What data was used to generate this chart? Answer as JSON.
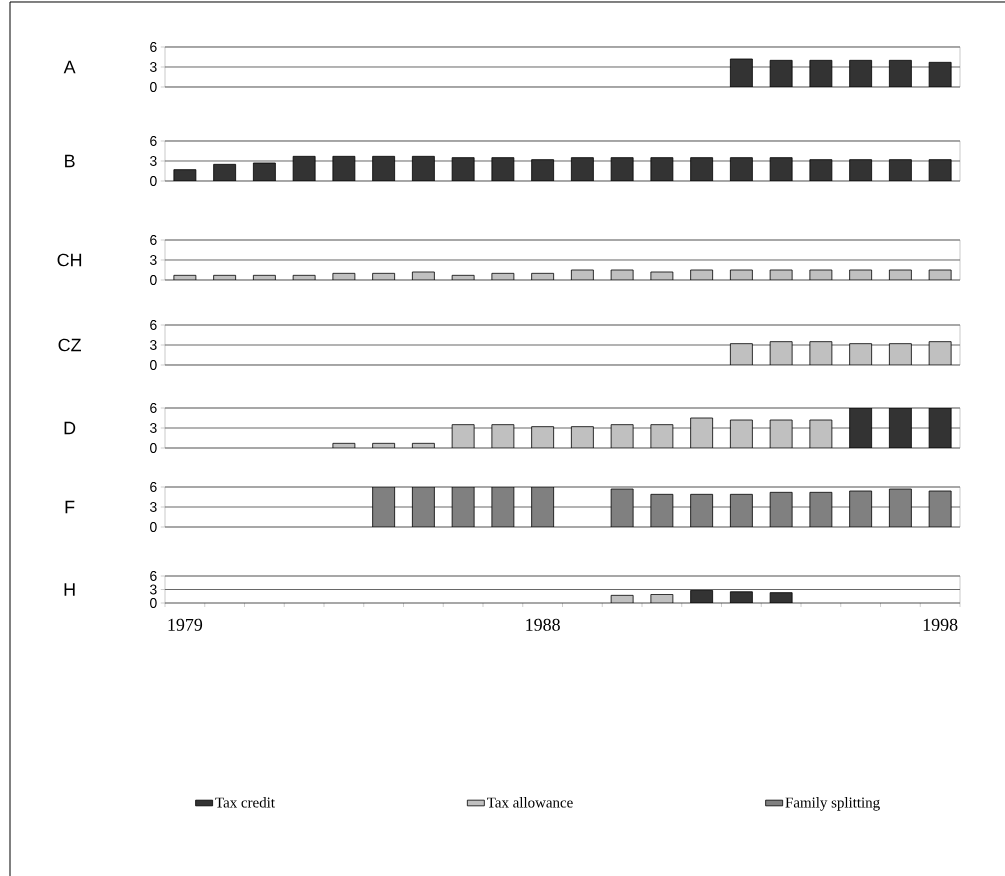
{
  "chart_data": [
    {
      "type": "bar",
      "ylabel": "A",
      "categories": [
        "1979",
        null,
        null,
        null,
        null,
        null,
        null,
        null,
        null,
        "1988",
        null,
        null,
        null,
        null,
        null,
        null,
        null,
        null,
        null,
        "1998"
      ],
      "ylim": [
        0,
        6
      ],
      "yticks": [
        0,
        3,
        6
      ],
      "grid": "y",
      "tick_labels": "y",
      "series": [
        {
          "color": "#333333",
          "values": [
            null,
            null,
            null,
            null,
            null,
            null,
            null,
            null,
            null,
            null,
            null,
            null,
            null,
            null,
            4.2,
            4.0,
            4.0,
            4.0,
            4.0,
            3.7
          ]
        }
      ]
    },
    {
      "type": "bar",
      "ylabel": "B",
      "categories": [
        "1979",
        null,
        null,
        null,
        null,
        null,
        null,
        null,
        null,
        "1988",
        null,
        null,
        null,
        null,
        null,
        null,
        null,
        null,
        null,
        "1998"
      ],
      "ylim": [
        0,
        6
      ],
      "yticks": [
        0,
        3,
        6
      ],
      "grid": "y",
      "tick_labels": "y",
      "series": [
        {
          "color": "#333333",
          "values": [
            1.7,
            2.5,
            2.7,
            3.7,
            3.7,
            3.7,
            3.7,
            3.5,
            3.5,
            3.2,
            3.5,
            3.5,
            3.5,
            3.5,
            3.5,
            3.5,
            3.2,
            3.2,
            3.2,
            3.2
          ]
        }
      ]
    },
    {
      "type": "bar",
      "ylabel": "CH",
      "categories": [
        "1979",
        null,
        null,
        null,
        null,
        null,
        null,
        null,
        null,
        "1988",
        null,
        null,
        null,
        null,
        null,
        null,
        null,
        null,
        null,
        "1998"
      ],
      "ylim": [
        0,
        6
      ],
      "yticks": [
        0,
        3,
        6
      ],
      "grid": "y",
      "tick_labels": "y",
      "series": [
        {
          "color": "#c0c0c0",
          "values": [
            0.7,
            0.7,
            0.7,
            0.7,
            1.0,
            1.0,
            1.2,
            0.7,
            1.0,
            1.0,
            1.5,
            1.5,
            1.2,
            1.5,
            1.5,
            1.5,
            1.5,
            1.5,
            1.5,
            1.5
          ]
        }
      ]
    },
    {
      "type": "bar",
      "ylabel": "CZ",
      "categories": [
        "1979",
        null,
        null,
        null,
        null,
        null,
        null,
        null,
        null,
        "1988",
        null,
        null,
        null,
        null,
        null,
        null,
        null,
        null,
        null,
        "1998"
      ],
      "ylim": [
        0,
        6
      ],
      "yticks": [
        0,
        3,
        6
      ],
      "grid": "y",
      "tick_labels": "y",
      "series": [
        {
          "color": "#c0c0c0",
          "values": [
            null,
            null,
            null,
            null,
            null,
            null,
            null,
            null,
            null,
            null,
            null,
            null,
            null,
            null,
            3.2,
            3.5,
            3.5,
            3.2,
            3.2,
            3.5
          ]
        }
      ]
    },
    {
      "type": "bar",
      "ylabel": "D",
      "categories": [
        "1979",
        null,
        null,
        null,
        null,
        null,
        null,
        null,
        null,
        "1988",
        null,
        null,
        null,
        null,
        null,
        null,
        null,
        null,
        null,
        "1998"
      ],
      "ylim": [
        0,
        6
      ],
      "yticks": [
        0,
        3,
        6
      ],
      "grid": "y",
      "tick_labels": "y",
      "series": [
        {
          "color": "#c0c0c0",
          "values": [
            null,
            null,
            null,
            null,
            0.7,
            0.7,
            0.7,
            3.5,
            3.5,
            3.2,
            3.2,
            3.5,
            3.5,
            4.5,
            4.2,
            4.2,
            4.2,
            null,
            null,
            null
          ]
        },
        {
          "color": "#333333",
          "values": [
            null,
            null,
            null,
            null,
            null,
            null,
            null,
            null,
            null,
            null,
            null,
            null,
            null,
            null,
            null,
            null,
            null,
            6,
            6,
            6
          ]
        }
      ]
    },
    {
      "type": "bar",
      "ylabel": "F",
      "categories": [
        "1979",
        null,
        null,
        null,
        null,
        null,
        null,
        null,
        null,
        "1988",
        null,
        null,
        null,
        null,
        null,
        null,
        null,
        null,
        null,
        "1998"
      ],
      "ylim": [
        0,
        6
      ],
      "yticks": [
        0,
        3,
        6
      ],
      "grid": "y",
      "tick_labels": "y",
      "series": [
        {
          "color": "#808080",
          "values": [
            null,
            null,
            null,
            null,
            null,
            6,
            6,
            6,
            6,
            6,
            null,
            5.7,
            4.9,
            4.9,
            4.9,
            5.2,
            5.2,
            5.4,
            5.7,
            5.4
          ]
        }
      ]
    },
    {
      "type": "bar",
      "ylabel": "H",
      "categories": [
        "1979",
        null,
        null,
        null,
        null,
        null,
        null,
        null,
        null,
        "1988",
        null,
        null,
        null,
        null,
        null,
        null,
        null,
        null,
        null,
        "1998"
      ],
      "ylim": [
        0,
        6
      ],
      "yticks": [
        0,
        3,
        6
      ],
      "grid": "y",
      "legend": "bottom",
      "series": [
        {
          "name": "Tax credit",
          "color": "#333333",
          "values": [
            null,
            null,
            null,
            null,
            null,
            null,
            null,
            null,
            null,
            null,
            null,
            null,
            null,
            2.8,
            2.5,
            2.3,
            null,
            null,
            null,
            null
          ]
        },
        {
          "name": "Tax allowance",
          "color": "#c0c0c0",
          "values": [
            null,
            null,
            null,
            null,
            null,
            null,
            null,
            null,
            null,
            null,
            null,
            1.7,
            1.9,
            null,
            null,
            null,
            null,
            null,
            null,
            null
          ]
        },
        {
          "name": "Family splitting",
          "color": "#808080",
          "values": [
            null,
            null,
            null,
            null,
            null,
            null,
            null,
            null,
            null,
            null,
            null,
            null,
            null,
            null,
            null,
            null,
            null,
            null,
            null,
            null
          ]
        }
      ]
    }
  ]
}
